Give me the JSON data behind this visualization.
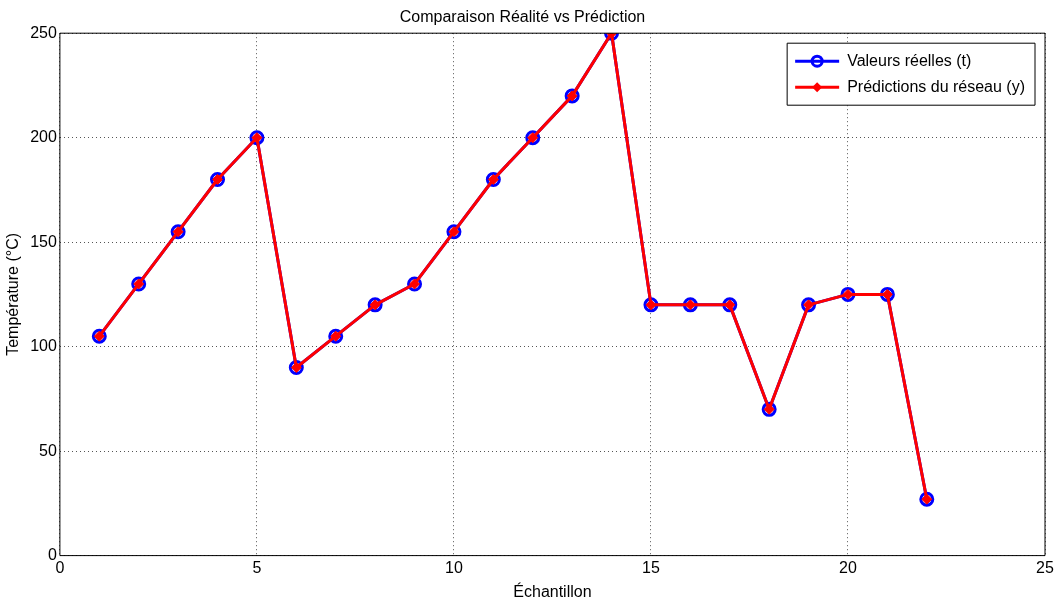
{
  "chart_data": {
    "type": "line",
    "title": "Comparaison Réalité vs Prédiction",
    "xlabel": "Échantillon",
    "ylabel": "Température (°C)",
    "x": [
      1,
      2,
      3,
      4,
      5,
      6,
      7,
      8,
      9,
      10,
      11,
      12,
      13,
      14,
      15,
      16,
      17,
      18,
      19,
      20,
      21,
      22
    ],
    "series": [
      {
        "name": "Valeurs réelles (t)",
        "color": "#0000ff",
        "marker": "circle",
        "values": [
          105,
          130,
          155,
          180,
          200,
          90,
          105,
          120,
          130,
          155,
          180,
          200,
          220,
          250,
          120,
          120,
          120,
          70,
          120,
          125,
          125,
          27
        ]
      },
      {
        "name": "Prédictions du réseau (y)",
        "color": "#ff0000",
        "marker": "diamond",
        "values": [
          105,
          130,
          155,
          180,
          200,
          90,
          105,
          120,
          130,
          155,
          180,
          200,
          220,
          250,
          120,
          120,
          120,
          70,
          120,
          125,
          125,
          27
        ]
      }
    ],
    "xlim": [
      0,
      25
    ],
    "xticks": [
      0,
      5,
      10,
      15,
      20,
      25
    ],
    "ylim": [
      0,
      250
    ],
    "yticks": [
      0,
      50,
      100,
      150,
      200,
      250
    ],
    "grid": true,
    "legend": "top right",
    "line_style": "solid"
  }
}
